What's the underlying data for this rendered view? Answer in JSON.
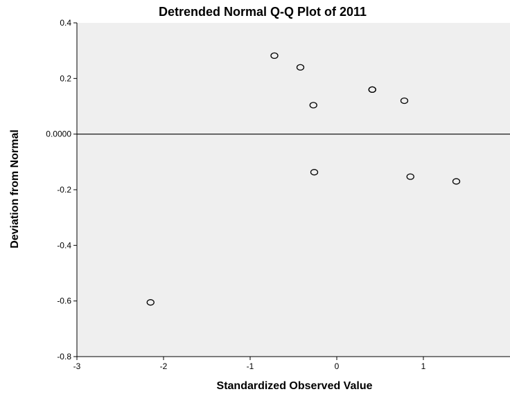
{
  "chart_data": {
    "type": "scatter",
    "title": "Detrended Normal Q-Q Plot of 2011",
    "xlabel": "Standardized Observed Value",
    "ylabel": "Deviation from Normal",
    "xlim": [
      -3,
      2
    ],
    "ylim": [
      -0.8,
      0.4
    ],
    "xticks": [
      -3,
      -2,
      -1,
      0,
      1
    ],
    "xtick_labels": [
      "-3",
      "-2",
      "-1",
      "0",
      "1"
    ],
    "yticks": [
      0.4,
      0.2,
      0.0,
      -0.2,
      -0.4,
      -0.6,
      -0.8
    ],
    "ytick_labels": [
      "0.4",
      "0.2",
      "0.0000",
      "-0.2",
      "-0.4",
      "-0.6",
      "-0.8"
    ],
    "reference_line_y": 0.0,
    "grid": false,
    "colors": {
      "plot_background": "#efefef",
      "marker_edge": "#000000",
      "axis": "#000000"
    },
    "points": [
      {
        "x": -2.15,
        "y": -0.605
      },
      {
        "x": -0.72,
        "y": 0.282
      },
      {
        "x": -0.42,
        "y": 0.24
      },
      {
        "x": -0.27,
        "y": 0.104
      },
      {
        "x": -0.26,
        "y": -0.137
      },
      {
        "x": 0.41,
        "y": 0.16
      },
      {
        "x": 0.41,
        "y": 0.16
      },
      {
        "x": 0.78,
        "y": 0.12
      },
      {
        "x": 0.85,
        "y": -0.153
      },
      {
        "x": 1.38,
        "y": -0.17
      }
    ]
  }
}
